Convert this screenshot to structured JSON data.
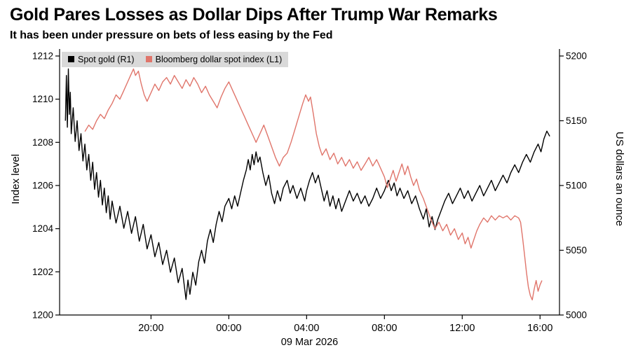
{
  "header": {
    "title": "Gold Pares Losses as Dollar Dips After Trump War Remarks",
    "subtitle": "It has been under pressure on bets of less easing by the Fed"
  },
  "legend": {
    "items": [
      {
        "label": "Spot gold (R1)",
        "color": "#000000"
      },
      {
        "label": "Bloomberg dollar spot index (L1)",
        "color": "#e0756b"
      }
    ]
  },
  "chart_data": {
    "type": "line",
    "title": "Gold Pares Losses as Dollar Dips After Trump War Remarks",
    "subtitle": "It has been under pressure on bets of less easing by the Fed",
    "grid": false,
    "legend_position": "top-left",
    "x_axis": {
      "range_hours": [
        15.3,
        41.0
      ],
      "tick_hours": [
        20,
        24,
        28,
        32,
        36,
        40
      ],
      "tick_labels": [
        "20:00",
        "00:00",
        "04:00",
        "08:00",
        "12:00",
        "16:00"
      ],
      "date_label": "09 Mar 2026"
    },
    "left_axis": {
      "label": "Index level",
      "range": [
        1200,
        1212
      ],
      "ticks": [
        1200,
        1202,
        1204,
        1206,
        1208,
        1210,
        1212
      ]
    },
    "right_axis": {
      "label": "US dollars an ounce",
      "range": [
        5000,
        5200
      ],
      "ticks": [
        5000,
        5050,
        5100,
        5150,
        5200
      ]
    },
    "series": [
      {
        "id": "spot-gold",
        "name": "Spot gold (R1)",
        "axis": "right",
        "color": "#000000",
        "points": [
          [
            15.6,
            5150
          ],
          [
            15.65,
            5185
          ],
          [
            15.7,
            5145
          ],
          [
            15.75,
            5190
          ],
          [
            15.8,
            5155
          ],
          [
            15.85,
            5172
          ],
          [
            15.9,
            5140
          ],
          [
            16.0,
            5160
          ],
          [
            16.1,
            5134
          ],
          [
            16.2,
            5150
          ],
          [
            16.3,
            5127
          ],
          [
            16.4,
            5140
          ],
          [
            16.5,
            5119
          ],
          [
            16.6,
            5132
          ],
          [
            16.7,
            5112
          ],
          [
            16.8,
            5124
          ],
          [
            16.9,
            5104
          ],
          [
            17.0,
            5118
          ],
          [
            17.1,
            5097
          ],
          [
            17.2,
            5110
          ],
          [
            17.3,
            5091
          ],
          [
            17.4,
            5104
          ],
          [
            17.5,
            5085
          ],
          [
            17.6,
            5098
          ],
          [
            17.7,
            5079
          ],
          [
            17.8,
            5092
          ],
          [
            17.9,
            5074
          ],
          [
            18.0,
            5088
          ],
          [
            18.2,
            5071
          ],
          [
            18.4,
            5084
          ],
          [
            18.6,
            5067
          ],
          [
            18.8,
            5080
          ],
          [
            19.0,
            5063
          ],
          [
            19.2,
            5076
          ],
          [
            19.4,
            5057
          ],
          [
            19.6,
            5070
          ],
          [
            19.8,
            5051
          ],
          [
            20.0,
            5062
          ],
          [
            20.2,
            5045
          ],
          [
            20.4,
            5056
          ],
          [
            20.6,
            5039
          ],
          [
            20.8,
            5050
          ],
          [
            21.0,
            5033
          ],
          [
            21.2,
            5044
          ],
          [
            21.4,
            5025
          ],
          [
            21.6,
            5036
          ],
          [
            21.8,
            5012
          ],
          [
            21.9,
            5027
          ],
          [
            22.0,
            5016
          ],
          [
            22.15,
            5033
          ],
          [
            22.3,
            5023
          ],
          [
            22.45,
            5041
          ],
          [
            22.6,
            5050
          ],
          [
            22.75,
            5040
          ],
          [
            22.9,
            5057
          ],
          [
            23.05,
            5066
          ],
          [
            23.2,
            5056
          ],
          [
            23.35,
            5070
          ],
          [
            23.5,
            5080
          ],
          [
            23.65,
            5072
          ],
          [
            23.8,
            5084
          ],
          [
            24.0,
            5090
          ],
          [
            24.15,
            5082
          ],
          [
            24.3,
            5092
          ],
          [
            24.45,
            5084
          ],
          [
            24.6,
            5094
          ],
          [
            24.75,
            5104
          ],
          [
            24.9,
            5112
          ],
          [
            25.0,
            5120
          ],
          [
            25.1,
            5112
          ],
          [
            25.2,
            5124
          ],
          [
            25.3,
            5116
          ],
          [
            25.4,
            5126
          ],
          [
            25.5,
            5118
          ],
          [
            25.6,
            5122
          ],
          [
            25.75,
            5110
          ],
          [
            25.9,
            5100
          ],
          [
            26.05,
            5108
          ],
          [
            26.2,
            5094
          ],
          [
            26.35,
            5086
          ],
          [
            26.5,
            5096
          ],
          [
            26.65,
            5088
          ],
          [
            26.8,
            5098
          ],
          [
            27.0,
            5104
          ],
          [
            27.15,
            5094
          ],
          [
            27.3,
            5100
          ],
          [
            27.5,
            5090
          ],
          [
            27.7,
            5098
          ],
          [
            27.9,
            5088
          ],
          [
            28.0,
            5096
          ],
          [
            28.15,
            5104
          ],
          [
            28.3,
            5110
          ],
          [
            28.45,
            5102
          ],
          [
            28.6,
            5108
          ],
          [
            28.75,
            5098
          ],
          [
            28.9,
            5088
          ],
          [
            29.05,
            5096
          ],
          [
            29.2,
            5084
          ],
          [
            29.35,
            5092
          ],
          [
            29.5,
            5082
          ],
          [
            29.65,
            5090
          ],
          [
            29.8,
            5080
          ],
          [
            30.0,
            5088
          ],
          [
            30.2,
            5096
          ],
          [
            30.4,
            5088
          ],
          [
            30.6,
            5094
          ],
          [
            30.8,
            5086
          ],
          [
            31.0,
            5092
          ],
          [
            31.2,
            5084
          ],
          [
            31.4,
            5090
          ],
          [
            31.6,
            5098
          ],
          [
            31.8,
            5090
          ],
          [
            32.0,
            5096
          ],
          [
            32.2,
            5104
          ],
          [
            32.35,
            5096
          ],
          [
            32.5,
            5102
          ],
          [
            32.65,
            5092
          ],
          [
            32.8,
            5098
          ],
          [
            33.0,
            5090
          ],
          [
            33.2,
            5096
          ],
          [
            33.4,
            5086
          ],
          [
            33.6,
            5092
          ],
          [
            33.8,
            5082
          ],
          [
            34.0,
            5074
          ],
          [
            34.15,
            5082
          ],
          [
            34.3,
            5068
          ],
          [
            34.45,
            5076
          ],
          [
            34.6,
            5066
          ],
          [
            34.75,
            5074
          ],
          [
            34.9,
            5080
          ],
          [
            35.1,
            5088
          ],
          [
            35.3,
            5094
          ],
          [
            35.5,
            5086
          ],
          [
            35.7,
            5092
          ],
          [
            35.9,
            5098
          ],
          [
            36.1,
            5090
          ],
          [
            36.3,
            5096
          ],
          [
            36.5,
            5088
          ],
          [
            36.7,
            5094
          ],
          [
            36.9,
            5100
          ],
          [
            37.1,
            5092
          ],
          [
            37.3,
            5098
          ],
          [
            37.5,
            5104
          ],
          [
            37.7,
            5096
          ],
          [
            37.9,
            5102
          ],
          [
            38.1,
            5108
          ],
          [
            38.3,
            5102
          ],
          [
            38.5,
            5110
          ],
          [
            38.7,
            5116
          ],
          [
            38.9,
            5110
          ],
          [
            39.1,
            5118
          ],
          [
            39.3,
            5124
          ],
          [
            39.5,
            5118
          ],
          [
            39.7,
            5126
          ],
          [
            39.9,
            5132
          ],
          [
            40.05,
            5126
          ],
          [
            40.2,
            5136
          ],
          [
            40.35,
            5142
          ],
          [
            40.5,
            5138
          ]
        ]
      },
      {
        "id": "dollar-index",
        "name": "Bloomberg dollar spot index (L1)",
        "axis": "left",
        "color": "#e0756b",
        "points": [
          [
            16.6,
            1208.5
          ],
          [
            16.8,
            1208.8
          ],
          [
            17.0,
            1208.6
          ],
          [
            17.2,
            1209.0
          ],
          [
            17.4,
            1209.3
          ],
          [
            17.6,
            1209.1
          ],
          [
            17.8,
            1209.5
          ],
          [
            18.0,
            1209.8
          ],
          [
            18.2,
            1210.2
          ],
          [
            18.4,
            1210.0
          ],
          [
            18.6,
            1210.4
          ],
          [
            18.8,
            1210.8
          ],
          [
            19.0,
            1211.2
          ],
          [
            19.1,
            1211.4
          ],
          [
            19.2,
            1211.1
          ],
          [
            19.35,
            1211.3
          ],
          [
            19.5,
            1210.7
          ],
          [
            19.65,
            1210.2
          ],
          [
            19.8,
            1209.9
          ],
          [
            20.0,
            1210.3
          ],
          [
            20.2,
            1210.7
          ],
          [
            20.4,
            1210.4
          ],
          [
            20.6,
            1210.8
          ],
          [
            20.8,
            1211.0
          ],
          [
            21.0,
            1210.7
          ],
          [
            21.2,
            1211.1
          ],
          [
            21.4,
            1210.8
          ],
          [
            21.6,
            1210.5
          ],
          [
            21.8,
            1210.9
          ],
          [
            22.0,
            1210.6
          ],
          [
            22.2,
            1211.0
          ],
          [
            22.4,
            1210.7
          ],
          [
            22.6,
            1210.3
          ],
          [
            22.8,
            1210.6
          ],
          [
            23.0,
            1210.2
          ],
          [
            23.2,
            1209.9
          ],
          [
            23.4,
            1209.6
          ],
          [
            23.6,
            1210.1
          ],
          [
            23.8,
            1210.5
          ],
          [
            24.0,
            1210.8
          ],
          [
            24.2,
            1210.4
          ],
          [
            24.4,
            1210.0
          ],
          [
            24.6,
            1209.6
          ],
          [
            24.8,
            1209.2
          ],
          [
            25.0,
            1208.8
          ],
          [
            25.2,
            1208.4
          ],
          [
            25.4,
            1208.0
          ],
          [
            25.6,
            1208.4
          ],
          [
            25.8,
            1208.8
          ],
          [
            26.0,
            1208.3
          ],
          [
            26.2,
            1207.8
          ],
          [
            26.4,
            1207.3
          ],
          [
            26.6,
            1206.9
          ],
          [
            26.8,
            1207.3
          ],
          [
            27.0,
            1207.5
          ],
          [
            27.2,
            1208.0
          ],
          [
            27.4,
            1208.6
          ],
          [
            27.6,
            1209.2
          ],
          [
            27.8,
            1209.8
          ],
          [
            27.95,
            1210.2
          ],
          [
            28.1,
            1209.9
          ],
          [
            28.2,
            1210.1
          ],
          [
            28.35,
            1209.3
          ],
          [
            28.5,
            1208.4
          ],
          [
            28.65,
            1207.8
          ],
          [
            28.8,
            1207.4
          ],
          [
            29.0,
            1207.7
          ],
          [
            29.2,
            1207.2
          ],
          [
            29.4,
            1207.5
          ],
          [
            29.6,
            1207.0
          ],
          [
            29.8,
            1207.3
          ],
          [
            30.0,
            1206.9
          ],
          [
            30.2,
            1207.2
          ],
          [
            30.4,
            1206.8
          ],
          [
            30.6,
            1207.1
          ],
          [
            30.8,
            1206.7
          ],
          [
            31.0,
            1207.0
          ],
          [
            31.2,
            1207.3
          ],
          [
            31.4,
            1206.9
          ],
          [
            31.6,
            1207.2
          ],
          [
            31.8,
            1206.8
          ],
          [
            32.0,
            1206.4
          ],
          [
            32.15,
            1205.9
          ],
          [
            32.3,
            1206.3
          ],
          [
            32.45,
            1206.7
          ],
          [
            32.6,
            1206.2
          ],
          [
            32.75,
            1206.6
          ],
          [
            32.9,
            1207.0
          ],
          [
            33.05,
            1206.5
          ],
          [
            33.2,
            1206.9
          ],
          [
            33.35,
            1206.4
          ],
          [
            33.5,
            1206.0
          ],
          [
            33.65,
            1206.3
          ],
          [
            33.8,
            1205.8
          ],
          [
            34.0,
            1205.4
          ],
          [
            34.2,
            1204.9
          ],
          [
            34.4,
            1204.4
          ],
          [
            34.6,
            1204.0
          ],
          [
            34.8,
            1204.3
          ],
          [
            35.0,
            1203.9
          ],
          [
            35.2,
            1204.2
          ],
          [
            35.4,
            1203.7
          ],
          [
            35.6,
            1204.0
          ],
          [
            35.8,
            1203.5
          ],
          [
            36.0,
            1203.8
          ],
          [
            36.15,
            1203.3
          ],
          [
            36.3,
            1203.6
          ],
          [
            36.45,
            1203.1
          ],
          [
            36.6,
            1203.5
          ],
          [
            36.75,
            1203.9
          ],
          [
            36.9,
            1204.2
          ],
          [
            37.1,
            1204.5
          ],
          [
            37.3,
            1204.3
          ],
          [
            37.5,
            1204.6
          ],
          [
            37.7,
            1204.4
          ],
          [
            37.9,
            1204.6
          ],
          [
            38.1,
            1204.5
          ],
          [
            38.3,
            1204.6
          ],
          [
            38.5,
            1204.4
          ],
          [
            38.7,
            1204.6
          ],
          [
            38.9,
            1204.5
          ],
          [
            39.0,
            1204.3
          ],
          [
            39.1,
            1203.6
          ],
          [
            39.2,
            1202.8
          ],
          [
            39.3,
            1202.0
          ],
          [
            39.4,
            1201.3
          ],
          [
            39.5,
            1200.9
          ],
          [
            39.6,
            1200.7
          ],
          [
            39.7,
            1201.2
          ],
          [
            39.8,
            1201.6
          ],
          [
            39.9,
            1201.1
          ],
          [
            40.0,
            1201.4
          ],
          [
            40.1,
            1201.6
          ]
        ]
      }
    ]
  }
}
